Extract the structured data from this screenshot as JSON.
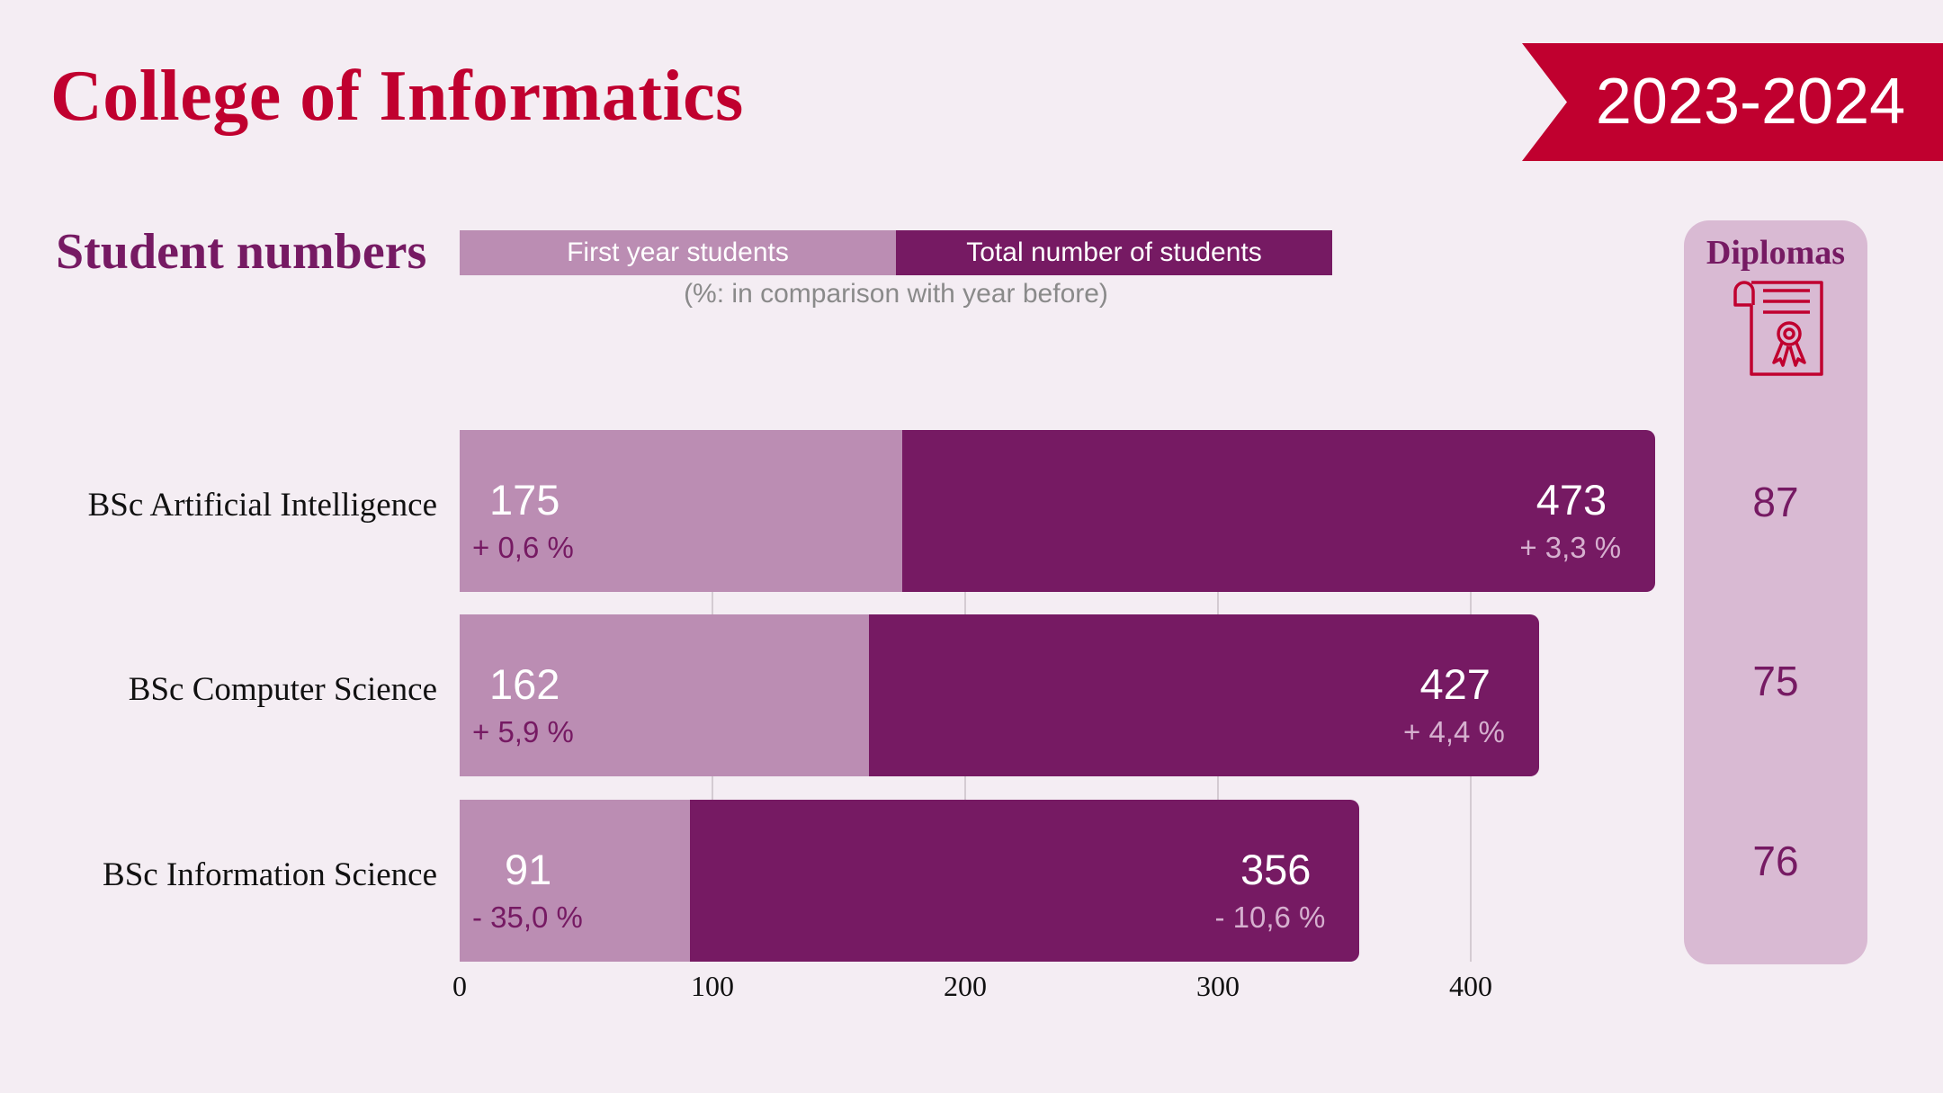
{
  "header": {
    "title": "College of Informatics",
    "year": "2023-2024"
  },
  "section_title": "Student numbers",
  "legend": {
    "first_year": "First year students",
    "total": "Total number of students",
    "note": "(%: in comparison with year before)"
  },
  "diplomas": {
    "title": "Diplomas",
    "icon": "diploma-certificate-icon",
    "values": [
      "87",
      "75",
      "76"
    ]
  },
  "colors": {
    "accent": "#c0002f",
    "first_year": "#bb8db3",
    "total": "#761a63",
    "background": "#f4edf3",
    "panel": "#d9bad3"
  },
  "chart_data": {
    "type": "bar",
    "orientation": "horizontal",
    "categories": [
      "BSc Artificial Intelligence",
      "BSc Computer Science",
      "BSc Information Science"
    ],
    "series": [
      {
        "name": "First year students",
        "values": [
          175,
          162,
          91
        ],
        "labels": [
          "175",
          "162",
          "91"
        ],
        "change": [
          "+ 0,6 %",
          "+ 5,9 %",
          "- 35,0 %"
        ]
      },
      {
        "name": "Total number of students",
        "values": [
          473,
          427,
          356
        ],
        "labels": [
          "473",
          "427",
          "356"
        ],
        "change": [
          "+ 3,3 %",
          "+ 4,4 %",
          "- 10,6 %"
        ]
      }
    ],
    "diplomas": [
      87,
      75,
      76
    ],
    "xlim": [
      0,
      473
    ],
    "xticks": [
      "0",
      "100",
      "200",
      "300",
      "400"
    ],
    "grid": true
  }
}
